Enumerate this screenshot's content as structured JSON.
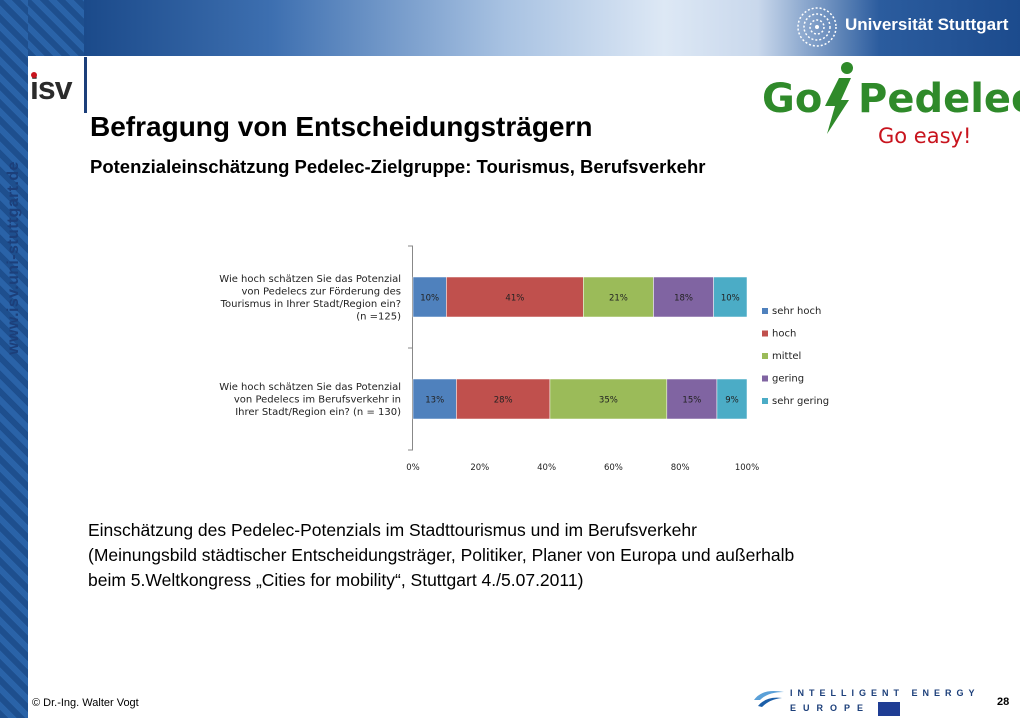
{
  "sidebar": {
    "url": "www.isv.uni-stuttgart.de"
  },
  "header": {
    "university": "Universität Stuttgart",
    "institute_logo": "isv",
    "brand_logo": {
      "go": "Go",
      "pedelec": "Pedelec!",
      "tagline": "Go easy!"
    }
  },
  "slide": {
    "title": "Befragung von Entscheidungsträgern",
    "subtitle": "Potenzialeinschätzung Pedelec-Zielgruppe: Tourismus, Berufsverkehr",
    "body": [
      "Einschätzung des Pedelec-Potenzials im Stadttourismus und im Berufsverkehr",
      "(Meinungsbild städtischer Entscheidungsträger, Politiker, Planer von Europa und außerhalb",
      "beim 5.Weltkongress „Cities for mobility“, Stuttgart 4./5.07.2011)"
    ]
  },
  "chart_data": {
    "type": "bar",
    "orientation": "horizontal",
    "stacked": true,
    "categories": [
      [
        "Wie hoch schätzen Sie das Potenzial",
        "von Pedelecs zur Förderung des",
        "Tourismus in Ihrer Stadt/Region ein?",
        "(n =125)"
      ],
      [
        "Wie hoch schätzen Sie das Potenzial",
        "von Pedelecs im Berufsverkehr in",
        "Ihrer Stadt/Region ein? (n = 130)"
      ]
    ],
    "series": [
      {
        "name": "sehr hoch",
        "color": "#4f81bd",
        "values": [
          10,
          13
        ],
        "labels": [
          "10%",
          "13%"
        ]
      },
      {
        "name": "hoch",
        "color": "#c0504d",
        "values": [
          41,
          28
        ],
        "labels": [
          "41%",
          "28%"
        ]
      },
      {
        "name": "mittel",
        "color": "#9bbb59",
        "values": [
          21,
          35
        ],
        "labels": [
          "21%",
          "35%"
        ]
      },
      {
        "name": "gering",
        "color": "#8064a2",
        "values": [
          18,
          15
        ],
        "labels": [
          "18%",
          "15%"
        ]
      },
      {
        "name": "sehr gering",
        "color": "#4bacc6",
        "values": [
          10,
          9
        ],
        "labels": [
          "10%",
          "9%"
        ]
      }
    ],
    "xlim": [
      0,
      100
    ],
    "xticks": [
      "0%",
      "20%",
      "40%",
      "60%",
      "80%",
      "100%"
    ],
    "legend": "right",
    "grid": false
  },
  "footer": {
    "copyright": "© Dr.-Ing. Walter Vogt",
    "page_number": "28",
    "program_logo": {
      "line1": "INTELLIGENT ENERGY",
      "line2": "EUROPE"
    }
  }
}
